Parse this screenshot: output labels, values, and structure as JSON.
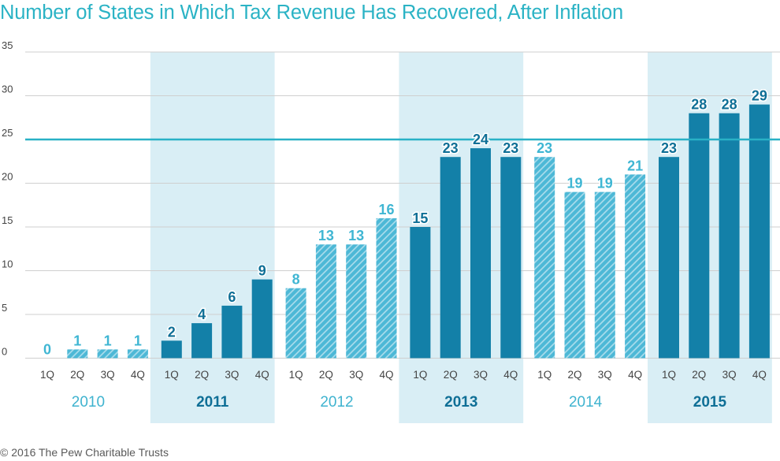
{
  "title": "Number of States in Which Tax Revenue Has Recovered, After Inflation",
  "credit": "© 2016 The Pew Charitable Trusts",
  "colors": {
    "solid": "#1380a8",
    "hatched": "#4db8d6",
    "solid_label": "#0f6f96",
    "hatched_label": "#3fb6d3",
    "band": "#d9eef5",
    "reference_line": "#29b1c6",
    "grid": "#cfcfcf",
    "year_light": "#3fb3cf",
    "year_dark": "#0f6f96"
  },
  "chart_data": {
    "type": "bar",
    "title": "Number of States in Which Tax Revenue Has Recovered, After Inflation",
    "ylim": [
      0,
      35
    ],
    "yticks": [
      0,
      5,
      10,
      15,
      20,
      25,
      30,
      35
    ],
    "grid": true,
    "reference_line": 25,
    "years": [
      {
        "year": "2010",
        "shaded": false,
        "bars": [
          {
            "q": "1Q",
            "value": 0,
            "style": "hatched"
          },
          {
            "q": "2Q",
            "value": 1,
            "style": "hatched"
          },
          {
            "q": "3Q",
            "value": 1,
            "style": "hatched"
          },
          {
            "q": "4Q",
            "value": 1,
            "style": "hatched"
          }
        ]
      },
      {
        "year": "2011",
        "shaded": true,
        "bars": [
          {
            "q": "1Q",
            "value": 2,
            "style": "solid"
          },
          {
            "q": "2Q",
            "value": 4,
            "style": "solid"
          },
          {
            "q": "3Q",
            "value": 6,
            "style": "solid"
          },
          {
            "q": "4Q",
            "value": 9,
            "style": "solid"
          }
        ]
      },
      {
        "year": "2012",
        "shaded": false,
        "bars": [
          {
            "q": "1Q",
            "value": 8,
            "style": "hatched"
          },
          {
            "q": "2Q",
            "value": 13,
            "style": "hatched"
          },
          {
            "q": "3Q",
            "value": 13,
            "style": "hatched"
          },
          {
            "q": "4Q",
            "value": 16,
            "style": "hatched"
          }
        ]
      },
      {
        "year": "2013",
        "shaded": true,
        "bars": [
          {
            "q": "1Q",
            "value": 15,
            "style": "solid"
          },
          {
            "q": "2Q",
            "value": 23,
            "style": "solid"
          },
          {
            "q": "3Q",
            "value": 24,
            "style": "solid"
          },
          {
            "q": "4Q",
            "value": 23,
            "style": "solid"
          }
        ]
      },
      {
        "year": "2014",
        "shaded": false,
        "bars": [
          {
            "q": "1Q",
            "value": 23,
            "style": "hatched"
          },
          {
            "q": "2Q",
            "value": 19,
            "style": "hatched"
          },
          {
            "q": "3Q",
            "value": 19,
            "style": "hatched"
          },
          {
            "q": "4Q",
            "value": 21,
            "style": "hatched"
          }
        ]
      },
      {
        "year": "2015",
        "shaded": true,
        "bars": [
          {
            "q": "1Q",
            "value": 23,
            "style": "solid"
          },
          {
            "q": "2Q",
            "value": 28,
            "style": "solid"
          },
          {
            "q": "3Q",
            "value": 28,
            "style": "solid"
          },
          {
            "q": "4Q",
            "value": 29,
            "style": "solid"
          }
        ]
      }
    ]
  }
}
